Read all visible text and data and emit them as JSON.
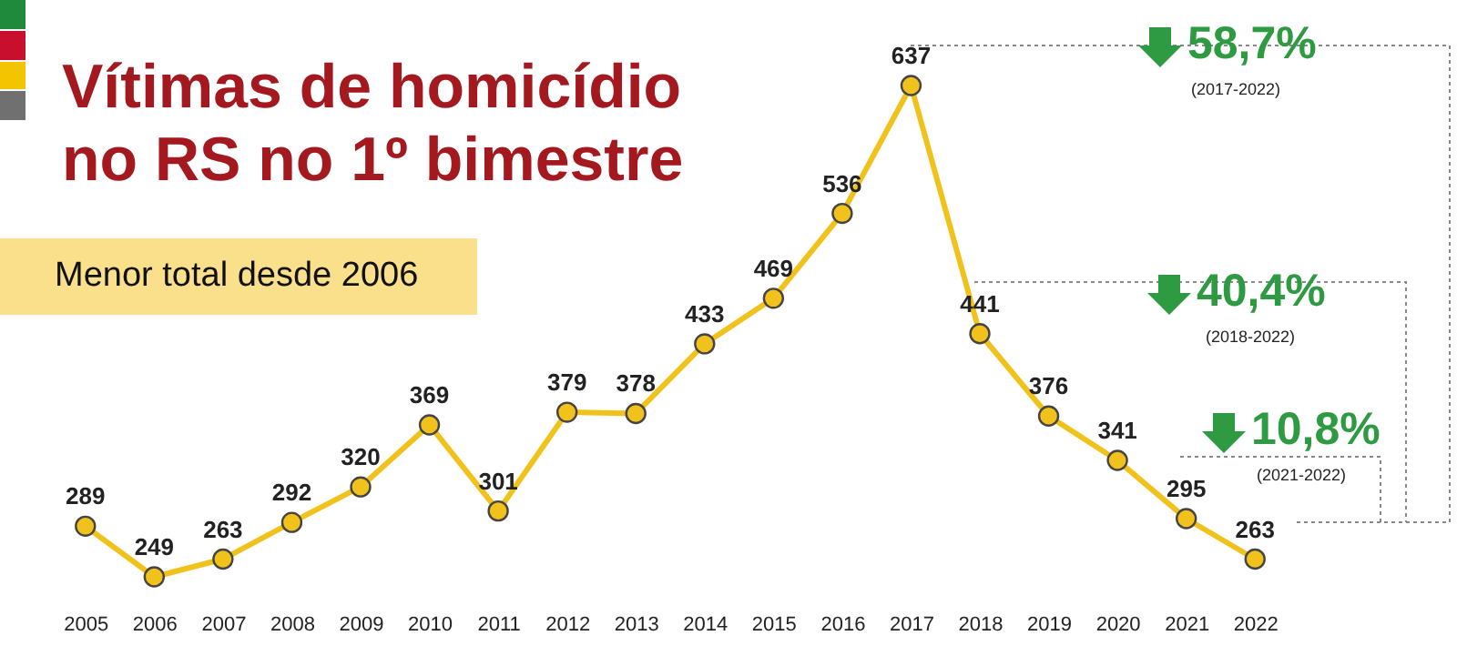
{
  "chart_data": {
    "type": "line",
    "title": "Vítimas de homicídio no RS no 1º bimestre",
    "subtitle": "Menor total desde 2006",
    "categories": [
      "2005",
      "2006",
      "2007",
      "2008",
      "2009",
      "2010",
      "2011",
      "2012",
      "2013",
      "2014",
      "2015",
      "2016",
      "2017",
      "2018",
      "2019",
      "2020",
      "2021",
      "2022"
    ],
    "series": [
      {
        "color": "#f1c21b",
        "values": [
          289,
          249,
          263,
          292,
          320,
          369,
          301,
          379,
          378,
          433,
          469,
          536,
          637,
          441,
          376,
          341,
          295,
          263
        ]
      }
    ],
    "data_labels": true,
    "marker": "circle",
    "grid": false,
    "tick_labels": "x",
    "annotations": [
      "58,7%",
      "(2017-2022)",
      "40,4%",
      "(2018-2022)",
      "10,8%",
      "(2021-2022)"
    ]
  }
}
